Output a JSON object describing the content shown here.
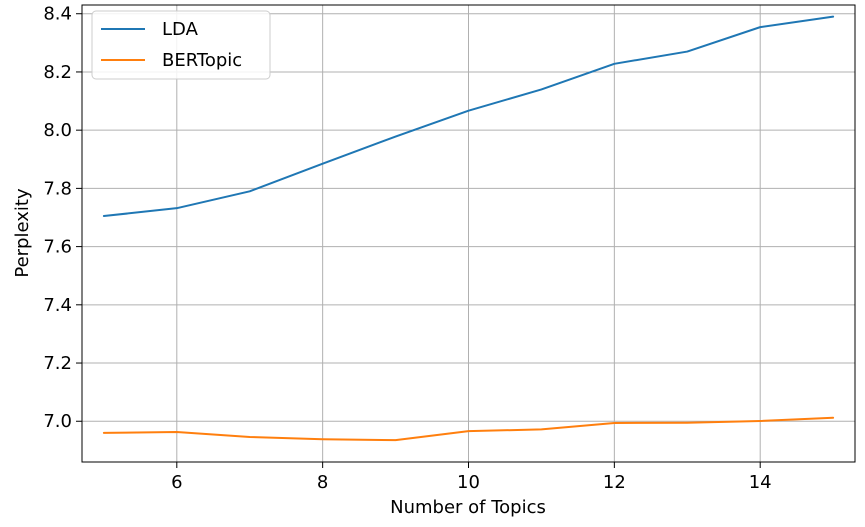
{
  "chart_data": {
    "type": "line",
    "title": "",
    "xlabel": "Number of Topics",
    "ylabel": "Perplexity",
    "x": [
      5,
      6,
      7,
      8,
      9,
      10,
      11,
      12,
      13,
      14,
      15
    ],
    "xlim": [
      4.7,
      15.3
    ],
    "ylim": [
      6.86,
      8.43
    ],
    "xticks": [
      6,
      8,
      10,
      12,
      14
    ],
    "yticks": [
      7.0,
      7.2,
      7.4,
      7.6,
      7.8,
      8.0,
      8.2,
      8.4
    ],
    "grid": true,
    "legend_position": "top-left",
    "series": [
      {
        "name": "LDA",
        "color": "#1f77b4",
        "values": [
          7.705,
          7.732,
          7.79,
          7.885,
          7.978,
          8.067,
          8.14,
          8.228,
          8.27,
          8.354,
          8.39
        ]
      },
      {
        "name": "BERTopic",
        "color": "#ff7f0e",
        "values": [
          6.96,
          6.963,
          6.946,
          6.938,
          6.935,
          6.966,
          6.972,
          6.994,
          6.995,
          7.001,
          7.012
        ]
      }
    ]
  }
}
